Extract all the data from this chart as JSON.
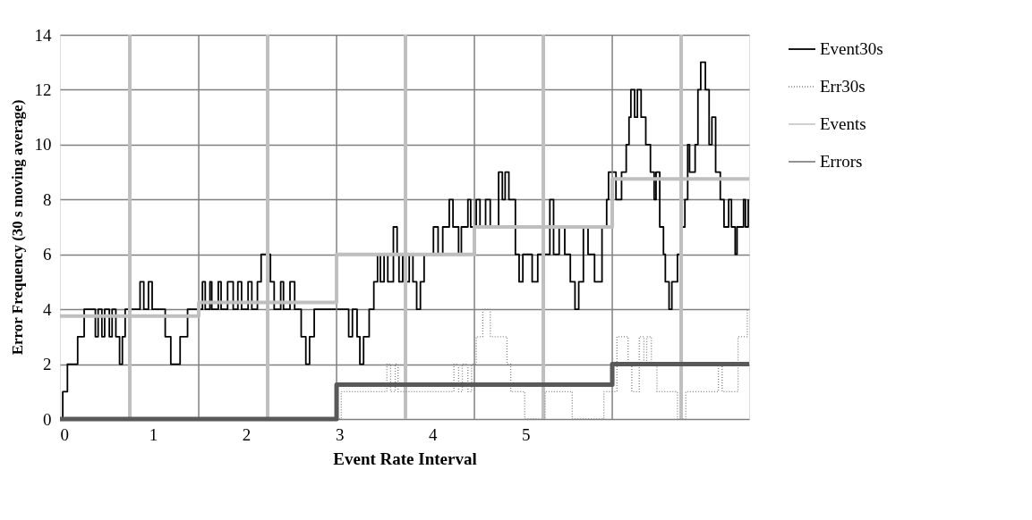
{
  "chart_data": {
    "type": "step",
    "xlabel": "Event Rate Interval",
    "ylabel": "Error Frequency (30 s moving average)",
    "xlim": [
      0,
      7.4
    ],
    "xticks": [
      0,
      1,
      2,
      3,
      4,
      5
    ],
    "ylim": [
      0,
      14
    ],
    "yticks": [
      0,
      2,
      4,
      6,
      8,
      10,
      12,
      14
    ],
    "grid": "y",
    "legend": "right",
    "series": [
      {
        "name": "Event30s",
        "color": "#000000",
        "line_style": "solid",
        "type": "step",
        "x": [
          0,
          0.03,
          0.08,
          0.19,
          0.26,
          0.38,
          0.41,
          0.45,
          0.48,
          0.53,
          0.56,
          0.6,
          0.64,
          0.67,
          0.7,
          0.86,
          0.9,
          0.95,
          0.99,
          1.13,
          1.19,
          1.29,
          1.37,
          1.53,
          1.56,
          1.61,
          1.63,
          1.7,
          1.73,
          1.8,
          1.86,
          1.91,
          1.95,
          2.02,
          2.06,
          2.12,
          2.16,
          2.26,
          2.3,
          2.37,
          2.4,
          2.47,
          2.52,
          2.59,
          2.64,
          2.68,
          2.73,
          3.1,
          3.14,
          3.19,
          3.22,
          3.26,
          3.32,
          3.37,
          3.41,
          3.44,
          3.48,
          3.52,
          3.58,
          3.62,
          3.64,
          3.68,
          3.72,
          3.75,
          3.79,
          3.83,
          3.87,
          3.91,
          4.01,
          4.06,
          4.11,
          4.18,
          4.22,
          4.28,
          4.31,
          4.38,
          4.41,
          4.47,
          4.51,
          4.57,
          4.62,
          4.71,
          4.75,
          4.78,
          4.82,
          4.89,
          4.93,
          4.97,
          5.07,
          5.13,
          5.26,
          5.3,
          5.36,
          5.42,
          5.48,
          5.53,
          5.57,
          5.62,
          5.67,
          5.74,
          5.82,
          5.87,
          5.89,
          5.97,
          6.03,
          6.08,
          6.11,
          6.13,
          6.17,
          6.2,
          6.24,
          6.29,
          6.34,
          6.38,
          6.4,
          6.44,
          6.48,
          6.5,
          6.54,
          6.57,
          6.63,
          6.68,
          6.71,
          6.74,
          6.76,
          6.82,
          6.85,
          6.88,
          6.93,
          6.97,
          7.0,
          7.04,
          7.09,
          7.13,
          7.18,
          7.21,
          7.25,
          7.27,
          7.34,
          7.36,
          7.39
        ],
        "values": [
          0,
          1,
          2,
          3,
          4,
          3,
          4,
          3,
          4,
          3,
          4,
          3,
          2,
          3,
          4,
          5,
          4,
          5,
          4,
          3,
          2,
          3,
          4,
          5,
          4,
          5,
          4,
          5,
          4,
          5,
          4,
          5,
          4,
          5,
          4,
          5,
          6,
          5,
          4,
          5,
          4,
          5,
          4,
          3,
          2,
          3,
          4,
          3,
          4,
          3,
          2,
          3,
          4,
          5,
          6,
          5,
          6,
          5,
          7,
          6,
          5,
          6,
          5,
          6,
          5,
          4,
          5,
          6,
          7,
          6,
          7,
          8,
          7,
          6,
          7,
          8,
          7,
          8,
          7,
          8,
          7,
          9,
          8,
          9,
          8,
          6,
          5,
          6,
          5,
          6,
          8,
          6,
          7,
          6,
          5,
          4,
          5,
          7,
          6,
          5,
          7,
          8,
          9,
          8,
          9,
          10,
          11,
          12,
          11,
          12,
          11,
          10,
          9,
          8,
          9,
          7,
          6,
          5,
          4,
          5,
          6,
          7,
          8,
          10,
          9,
          10,
          12,
          13,
          12,
          10,
          11,
          9,
          8,
          7,
          8,
          7,
          6,
          7,
          8,
          7,
          8
        ]
      },
      {
        "name": "Err30s",
        "color": "#808080",
        "line_style": "dotted",
        "type": "step",
        "x": [
          0,
          3.02,
          3.51,
          3.55,
          3.6,
          3.63,
          4.23,
          4.28,
          4.32,
          4.38,
          4.42,
          4.47,
          4.54,
          4.62,
          4.8,
          4.84,
          4.99,
          5.21,
          5.5,
          5.84,
          5.98,
          6.1,
          6.14,
          6.22,
          6.27,
          6.3,
          6.35,
          6.41,
          6.63,
          6.72,
          7.07,
          7.11,
          7.28,
          7.38
        ],
        "values": [
          0,
          1,
          2,
          1,
          2,
          1,
          2,
          1,
          2,
          1,
          2,
          3,
          4,
          3,
          2,
          1,
          0,
          1,
          0,
          1,
          3,
          2,
          1,
          3,
          2,
          3,
          2,
          1,
          0,
          1,
          2,
          1,
          3,
          4
        ]
      },
      {
        "name": "Events",
        "color": "#bfbfbf",
        "line_style": "solid",
        "type": "step",
        "x": [
          0,
          1.49,
          2.97,
          4.45,
          5.93,
          7.4
        ],
        "values": [
          3.75,
          4.25,
          6,
          7,
          8.75,
          8.75
        ]
      },
      {
        "name": "Errors",
        "color": "#595959",
        "line_style": "solid",
        "type": "step",
        "x": [
          0,
          2.97,
          5.93,
          7.4
        ],
        "values": [
          0,
          1.25,
          2,
          2
        ]
      }
    ],
    "ref_lines": [
      {
        "axis": "x",
        "value": 0.75,
        "color": "#bfbfbf"
      },
      {
        "axis": "x",
        "value": 2.23,
        "color": "#bfbfbf"
      },
      {
        "axis": "x",
        "value": 3.71,
        "color": "#bfbfbf"
      },
      {
        "axis": "x",
        "value": 5.19,
        "color": "#bfbfbf"
      },
      {
        "axis": "x",
        "value": 6.67,
        "color": "#bfbfbf"
      },
      {
        "axis": "x",
        "value": 1.49,
        "color": "#808080"
      },
      {
        "axis": "x",
        "value": 2.97,
        "color": "#808080"
      },
      {
        "axis": "x",
        "value": 4.45,
        "color": "#808080"
      },
      {
        "axis": "x",
        "value": 5.93,
        "color": "#808080"
      }
    ]
  }
}
